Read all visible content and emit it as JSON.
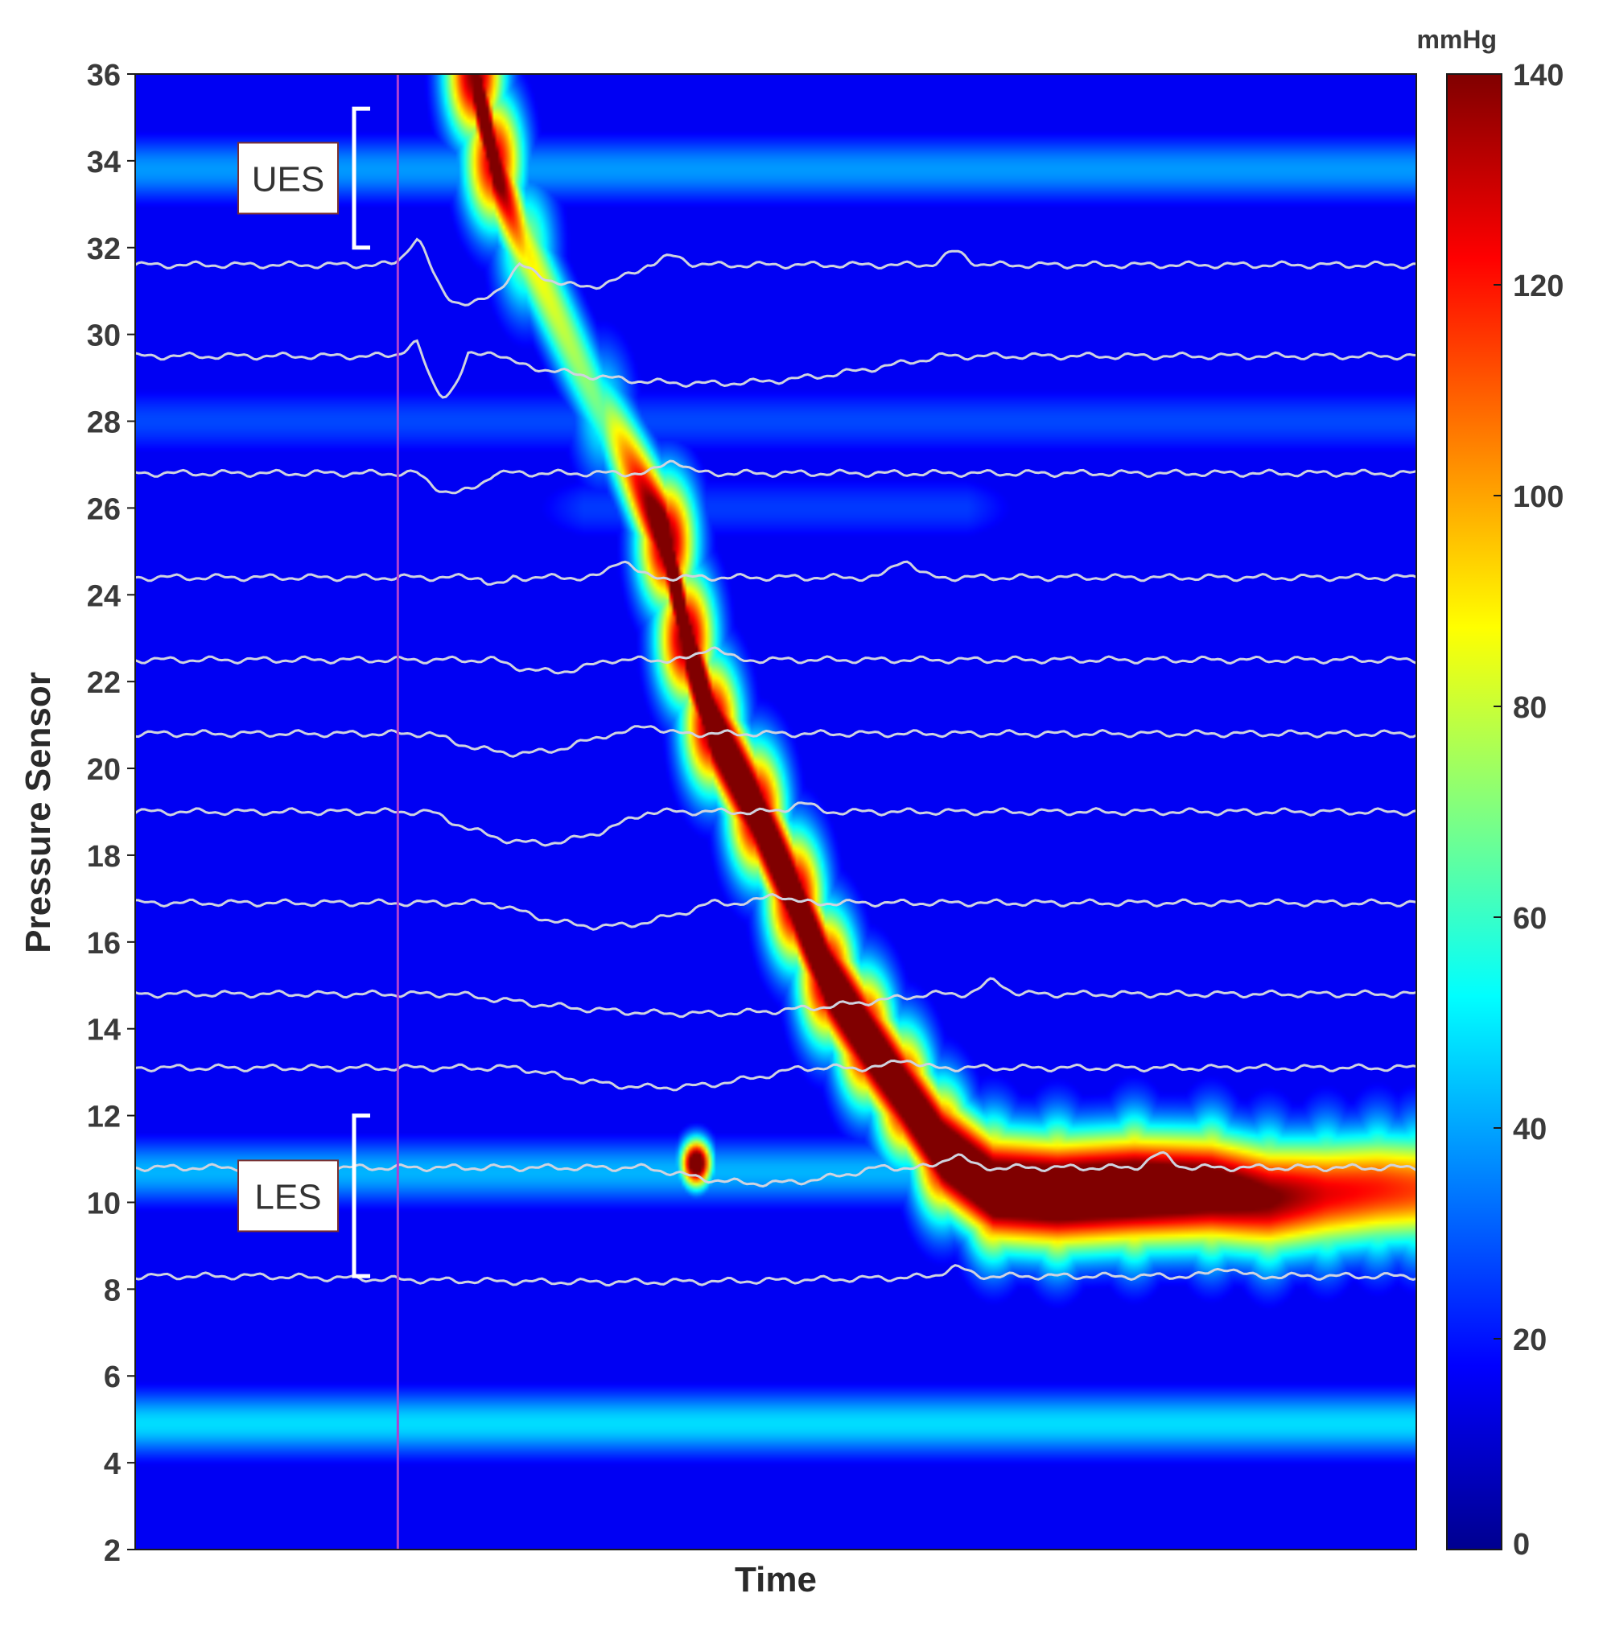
{
  "chart_data": {
    "type": "heatmap",
    "title": "",
    "xlabel": "Time",
    "ylabel": "Pressure Sensor",
    "ylim": [
      2,
      36
    ],
    "yticks": [
      2,
      4,
      6,
      8,
      10,
      12,
      14,
      16,
      18,
      20,
      22,
      24,
      26,
      28,
      30,
      32,
      34,
      36
    ],
    "xlim": [
      0,
      100
    ],
    "x_tick_labels": "none",
    "colorbar": {
      "unit_label": "mmHg",
      "range": [
        0,
        140
      ],
      "ticks": [
        0,
        20,
        40,
        60,
        80,
        100,
        120,
        140
      ],
      "colormap": "jet",
      "colors": [
        "#00008f",
        "#0000ff",
        "#0080ff",
        "#00ffff",
        "#80ff80",
        "#ffff00",
        "#ff8000",
        "#ff0000",
        "#800000"
      ]
    },
    "background_pressure_mmHg": 8,
    "bands": [
      {
        "sensor": 33.8,
        "x_start": 0,
        "x_end": 100,
        "pressure": 32,
        "label": "UES high-pressure zone"
      },
      {
        "sensor": 28,
        "x_start": 0,
        "x_end": 100,
        "pressure": 20
      },
      {
        "sensor": 26,
        "x_start": 35,
        "x_end": 65,
        "pressure": 18
      },
      {
        "sensor": 10.7,
        "x_start": 0,
        "x_end": 100,
        "pressure": 36,
        "label": "LES high-pressure zone"
      },
      {
        "sensor": 4.9,
        "x_start": 0,
        "x_end": 100,
        "pressure": 42
      }
    ],
    "peristaltic_wave": [
      {
        "x": 26.5,
        "sensor": 36,
        "pressure": 140
      },
      {
        "x": 28.0,
        "sensor": 34,
        "pressure": 130
      },
      {
        "x": 30.5,
        "sensor": 32,
        "pressure": 70
      },
      {
        "x": 36.5,
        "sensor": 28.2,
        "pressure": 50
      },
      {
        "x": 41.5,
        "sensor": 25.2,
        "pressure": 140
      },
      {
        "x": 43.0,
        "sensor": 23.0,
        "pressure": 140
      },
      {
        "x": 45.0,
        "sensor": 21.0,
        "pressure": 140
      },
      {
        "x": 48.5,
        "sensor": 19.0,
        "pressure": 140
      },
      {
        "x": 51.5,
        "sensor": 17.0,
        "pressure": 140
      },
      {
        "x": 54.0,
        "sensor": 15.2,
        "pressure": 140
      },
      {
        "x": 57.0,
        "sensor": 13.8,
        "pressure": 140
      },
      {
        "x": 60.0,
        "sensor": 12.5,
        "pressure": 135
      },
      {
        "x": 63.0,
        "sensor": 11.2,
        "pressure": 140
      },
      {
        "x": 67.0,
        "sensor": 10.3,
        "pressure": 140
      },
      {
        "x": 72.0,
        "sensor": 10.2,
        "pressure": 140
      },
      {
        "x": 78.0,
        "sensor": 10.3,
        "pressure": 140
      },
      {
        "x": 84.0,
        "sensor": 10.3,
        "pressure": 130
      },
      {
        "x": 88.5,
        "sensor": 10.1,
        "pressure": 115
      },
      {
        "x": 93.0,
        "sensor": 10.2,
        "pressure": 100
      },
      {
        "x": 97.0,
        "sensor": 10.3,
        "pressure": 95
      },
      {
        "x": 100.0,
        "sensor": 10.3,
        "pressure": 90
      }
    ],
    "hotspots": [
      {
        "x": 43.8,
        "sensor": 10.9,
        "pressure": 140,
        "note": "focal peak near LES"
      }
    ],
    "pressure_traces": [
      {
        "baseline": 31.6,
        "dips": [
          {
            "x0": 22,
            "x1": 30,
            "depth": 1.0
          },
          {
            "x0": 30,
            "x1": 40,
            "depth": 0.55
          }
        ],
        "bumps": [
          {
            "x": 22.1,
            "height": 0.6
          },
          {
            "x": 42,
            "height": 0.2
          },
          {
            "x": 64,
            "height": 0.3
          }
        ]
      },
      {
        "baseline": 29.5,
        "dips": [
          {
            "x0": 22,
            "x1": 26,
            "depth": 1.0
          },
          {
            "x0": 26,
            "x1": 63,
            "depth": 0.7
          }
        ],
        "bumps": [
          {
            "x": 22.0,
            "height": 0.3
          },
          {
            "x": 28,
            "height": 0.2
          }
        ]
      },
      {
        "baseline": 26.8,
        "dips": [
          {
            "x0": 22,
            "x1": 28,
            "depth": 0.5
          }
        ],
        "bumps": [
          {
            "x": 42,
            "height": 0.3
          }
        ]
      },
      {
        "baseline": 24.4,
        "dips": [
          {
            "x0": 27,
            "x1": 29.5,
            "depth": 0.2
          }
        ],
        "bumps": [
          {
            "x": 38,
            "height": 0.4
          },
          {
            "x": 60,
            "height": 0.4
          }
        ]
      },
      {
        "baseline": 22.5,
        "dips": [
          {
            "x0": 28,
            "x1": 37,
            "depth": 0.3
          }
        ],
        "bumps": [
          {
            "x": 45,
            "height": 0.3
          }
        ]
      },
      {
        "baseline": 20.8,
        "dips": [
          {
            "x0": 23,
            "x1": 37,
            "depth": 0.5
          }
        ],
        "bumps": [
          {
            "x": 40,
            "height": 0.2
          }
        ]
      },
      {
        "baseline": 19.0,
        "dips": [
          {
            "x0": 23,
            "x1": 40,
            "depth": 0.8
          }
        ],
        "bumps": [
          {
            "x": 52,
            "height": 0.2
          }
        ]
      },
      {
        "baseline": 16.9,
        "dips": [
          {
            "x0": 28,
            "x1": 45,
            "depth": 0.6
          }
        ],
        "bumps": [
          {
            "x": 50,
            "height": 0.2
          }
        ]
      },
      {
        "baseline": 14.8,
        "dips": [
          {
            "x0": 25,
            "x1": 62,
            "depth": 0.5
          }
        ],
        "bumps": [
          {
            "x": 67,
            "height": 0.3
          }
        ]
      },
      {
        "baseline": 13.1,
        "dips": [
          {
            "x0": 30,
            "x1": 52,
            "depth": 0.5
          }
        ],
        "bumps": [
          {
            "x": 60,
            "height": 0.2
          }
        ]
      },
      {
        "baseline": 10.8,
        "dips": [
          {
            "x0": 40,
            "x1": 58,
            "depth": 0.4
          }
        ],
        "bumps": [
          {
            "x": 64,
            "height": 0.3
          },
          {
            "x": 80,
            "height": 0.3
          }
        ]
      },
      {
        "baseline": 8.3,
        "dips": [
          {
            "x0": 10,
            "x1": 64,
            "depth": 0.15
          }
        ],
        "bumps": [
          {
            "x": 64,
            "height": 0.2
          },
          {
            "x": 85,
            "height": 0.2
          }
        ]
      }
    ],
    "marker_line": {
      "x": 20.5,
      "color": "#b040d0"
    },
    "annotations": [
      {
        "label": "UES",
        "sensor_min": 32.0,
        "sensor_max": 35.2
      },
      {
        "label": "LES",
        "sensor_min": 8.3,
        "sensor_max": 12.0
      }
    ]
  }
}
